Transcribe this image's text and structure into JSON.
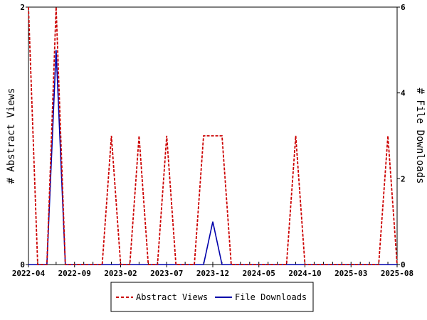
{
  "chart_data": {
    "type": "line",
    "x": [
      "2022-04",
      "2022-05",
      "2022-06",
      "2022-07",
      "2022-08",
      "2022-09",
      "2022-10",
      "2022-11",
      "2022-12",
      "2023-01",
      "2023-02",
      "2023-03",
      "2023-04",
      "2023-05",
      "2023-06",
      "2023-07",
      "2023-08",
      "2023-09",
      "2023-10",
      "2023-11",
      "2023-12",
      "2024-01",
      "2024-02",
      "2024-03",
      "2024-04",
      "2024-05",
      "2024-06",
      "2024-07",
      "2024-08",
      "2024-09",
      "2024-10",
      "2024-11",
      "2024-12",
      "2025-01",
      "2025-02",
      "2025-03",
      "2025-04",
      "2025-05",
      "2025-06",
      "2025-07",
      "2025-08"
    ],
    "x_tick_labels": [
      "2022-04",
      "2022-09",
      "2023-02",
      "2023-07",
      "2023-12",
      "2024-05",
      "2024-10",
      "2025-03",
      "2025-08"
    ],
    "series": [
      {
        "name": "Abstract Views",
        "axis": "left",
        "color": "#cc0000",
        "style": "dashed",
        "values": [
          2,
          0,
          0,
          2,
          0,
          0,
          0,
          0,
          0,
          1,
          0,
          0,
          1,
          0,
          0,
          1,
          0,
          0,
          0,
          1,
          1,
          1,
          0,
          0,
          0,
          0,
          0,
          0,
          0,
          1,
          0,
          0,
          0,
          0,
          0,
          0,
          0,
          0,
          0,
          1,
          0
        ]
      },
      {
        "name": "File Downloads",
        "axis": "right",
        "color": "#0000aa",
        "style": "solid",
        "values": [
          0,
          0,
          0,
          5,
          0,
          0,
          0,
          0,
          0,
          0,
          0,
          0,
          0,
          0,
          0,
          0,
          0,
          0,
          0,
          0,
          1,
          0,
          0,
          0,
          0,
          0,
          0,
          0,
          0,
          0,
          0,
          0,
          0,
          0,
          0,
          0,
          0,
          0,
          0,
          0,
          0
        ]
      }
    ],
    "y_left": {
      "label": "# Abstract Views",
      "ylim": [
        0,
        2
      ],
      "ticks": [
        "0",
        "2"
      ]
    },
    "y_right": {
      "label": "# File Downloads",
      "ylim": [
        0,
        6
      ],
      "ticks": [
        "0",
        "2",
        "4",
        "6"
      ]
    },
    "legend_placement": "bottom-center",
    "grid": false
  }
}
